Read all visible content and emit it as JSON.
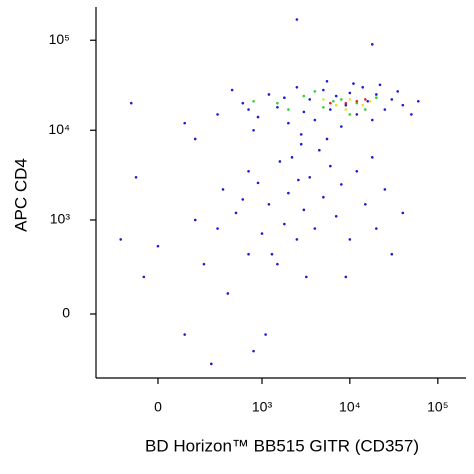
{
  "chart_data": {
    "type": "scatter",
    "xlabel": "BD Horizon™ BB515 GITR (CD357)",
    "ylabel": "APC CD4",
    "xlim": [
      -321,
      209000
    ],
    "ylim": [
      -450,
      234000
    ],
    "xticks": [
      0,
      {
        "value": 1000,
        "label": "10³"
      },
      {
        "value": 10000,
        "label": "10⁴"
      },
      {
        "value": 100000,
        "label": "10⁵"
      }
    ],
    "yticks": [
      0,
      {
        "value": 1000,
        "label": "10³"
      },
      {
        "value": 10000,
        "label": "10⁴"
      },
      {
        "value": 100000,
        "label": "10⁵"
      }
    ],
    "series": [
      {
        "color": "#1a1ad8",
        "x": [
          300,
          600,
          900,
          1200,
          1500,
          2000,
          2500,
          3000,
          3500,
          4000,
          5000,
          6000,
          7000,
          8000,
          9000,
          10000,
          12000,
          14000,
          16000,
          18000,
          20000,
          25000,
          30000,
          40000,
          50000,
          -100,
          100,
          450,
          800,
          1800,
          2800,
          5500,
          11000,
          22000,
          35000,
          60000,
          150,
          700,
          0,
          -50,
          100,
          200,
          300,
          400,
          500,
          700,
          800,
          1000,
          1200,
          1500,
          1800,
          2000,
          2500,
          3000,
          3500,
          4000,
          5000,
          6000,
          7000,
          8000,
          10000,
          12000,
          15000,
          20000,
          25000,
          30000,
          2200,
          2800,
          1600,
          4500,
          900,
          600,
          350,
          150,
          -150,
          250,
          1100,
          3200,
          9000,
          18000,
          40000,
          -80,
          5500,
          1300,
          700,
          2600,
          2500,
          18000
        ],
        "y": [
          15000,
          20000,
          14000,
          25000,
          18000,
          12000,
          30000,
          16000,
          22000,
          13000,
          28000,
          17000,
          24000,
          11000,
          19000,
          26000,
          15000,
          30000,
          21000,
          13000,
          25000,
          17000,
          22000,
          19000,
          15000,
          20000,
          12000,
          28000,
          10000,
          23000,
          9000,
          35000,
          33000,
          32000,
          27000,
          21000,
          8000,
          17000,
          500,
          200,
          -100,
          300,
          800,
          100,
          1200,
          400,
          -200,
          700,
          1500,
          300,
          900,
          2000,
          600,
          1300,
          3000,
          800,
          1800,
          4000,
          1100,
          2500,
          600,
          3500,
          1500,
          800,
          2200,
          400,
          5000,
          7000,
          4500,
          6000,
          2600,
          1700,
          2200,
          1000,
          600,
          -300,
          -100,
          200,
          200,
          5000,
          1200,
          3000,
          8000,
          400,
          3500,
          2800,
          170000,
          90000
        ]
      },
      {
        "color": "#2fd02f",
        "x": [
          1500,
          3000,
          5000,
          8000,
          12000,
          15000,
          20000,
          4000,
          10000,
          6500,
          2000,
          800
        ],
        "y": [
          20000,
          24000,
          18000,
          22000,
          20000,
          17000,
          23000,
          27000,
          15000,
          21000,
          17000,
          21000
        ]
      },
      {
        "color": "#e8e020",
        "x": [
          7000,
          10000,
          14000,
          5000,
          17000,
          9000
        ],
        "y": [
          19000,
          22000,
          19000,
          22000,
          21000,
          17000
        ]
      },
      {
        "color": "#e82020",
        "x": [
          9000,
          12000,
          6000,
          15000
        ],
        "y": [
          20000,
          21000,
          20000,
          22000
        ]
      }
    ]
  }
}
